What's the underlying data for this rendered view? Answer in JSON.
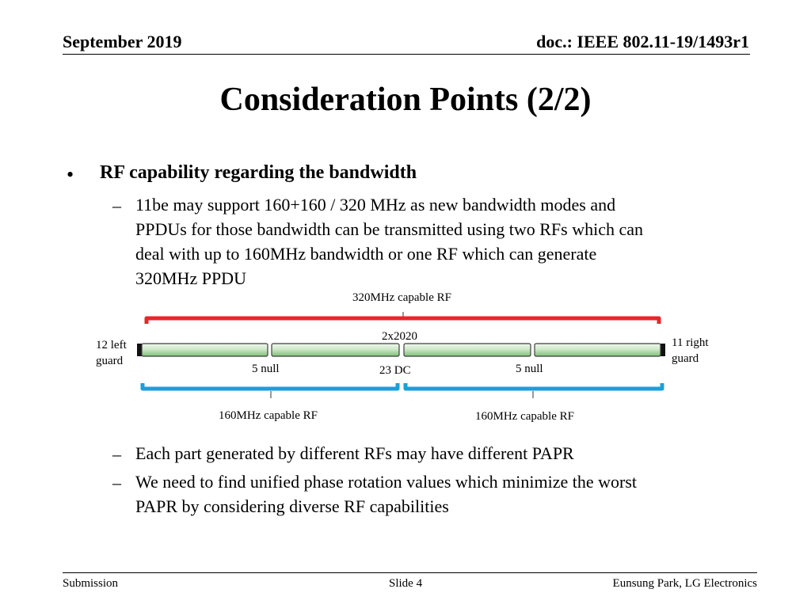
{
  "header": {
    "date": "September 2019",
    "doc": "doc.: IEEE 802.11-19/1493r1"
  },
  "title": "Consideration Points (2/2)",
  "bullet": {
    "marker": "•",
    "text": "RF capability regarding the bandwidth",
    "dash": "–",
    "sub1_lines": [
      "11be may support 160+160 / 320 MHz as new bandwidth modes and",
      "PPDUs for those bandwidth can be transmitted using two RFs which can",
      "deal with up to 160MHz bandwidth or one RF which can generate",
      "320MHz PPDU"
    ],
    "sub2": "Each part generated by different RFs may have different PAPR",
    "sub3_lines": [
      "We need to find unified phase rotation values which minimize the worst",
      "PAPR by considering diverse RF capabilities"
    ]
  },
  "diagram": {
    "rf320_label": "320MHz capable RF",
    "center_label": "2x2020",
    "left_guard_lines": [
      "12 left",
      "guard"
    ],
    "right_guard_lines": [
      "11 right",
      "guard"
    ],
    "null_left": "5 null",
    "dc": "23 DC",
    "null_right": "5 null",
    "rf160_left": "160MHz capable RF",
    "rf160_right": "160MHz capable RF",
    "colors": {
      "rf320_bar": "#e8262a",
      "rf160_bar": "#1aa0d8",
      "segment_fill_top": "#e6f3e2",
      "segment_fill_bottom": "#8fc68a",
      "segment_border": "#3f3f3f"
    }
  },
  "footer": {
    "left": "Submission",
    "center": "Slide 4",
    "right": "Eunsung Park, LG Electronics"
  }
}
